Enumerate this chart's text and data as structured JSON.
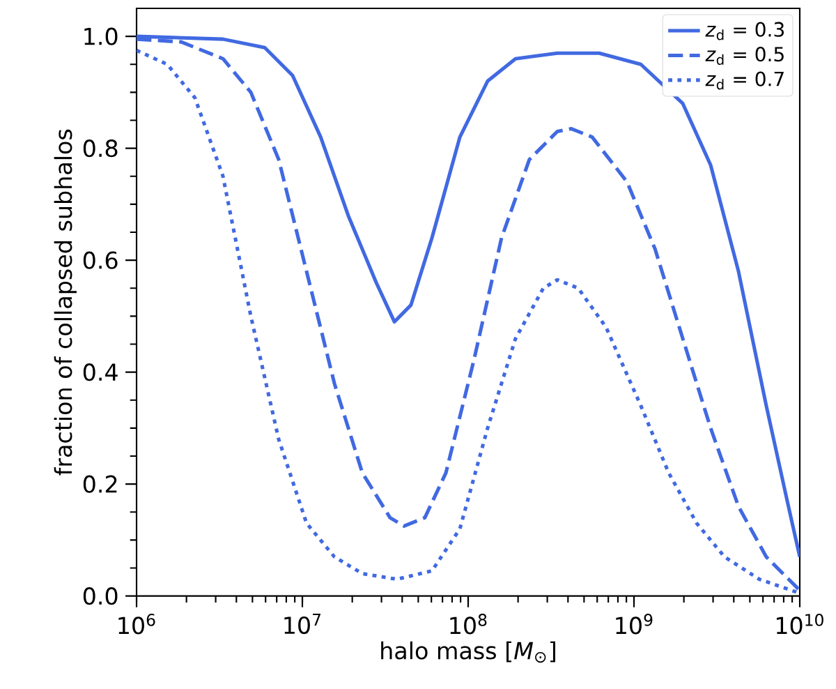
{
  "chart_data": {
    "type": "line",
    "xlabel": "halo mass [*M*$_{⊙}$]",
    "ylabel": "fraction of collapsed subhalos",
    "log": "x",
    "legend": "top right",
    "grid": false,
    "xlim": [
      1000000.0,
      10000000000.0
    ],
    "ylim": [
      0,
      1.05
    ],
    "xticks": [
      {
        "value": 1000000.0,
        "label": "10$^{6}$"
      },
      {
        "value": 10000000.0,
        "label": "10$^{7}$"
      },
      {
        "value": 100000000.0,
        "label": "10$^{8}$"
      },
      {
        "value": 1000000000.0,
        "label": "10$^{9}$"
      },
      {
        "value": 10000000000.0,
        "label": "10$^{10}$"
      }
    ],
    "yticks": [
      {
        "value": 0,
        "label": "0.0"
      },
      {
        "value": 0.2,
        "label": "0.2"
      },
      {
        "value": 0.4,
        "label": "0.4"
      },
      {
        "value": 0.6,
        "label": "0.6"
      },
      {
        "value": 0.8,
        "label": "0.8"
      },
      {
        "value": 1,
        "label": "1.0"
      }
    ],
    "series": [
      {
        "name": "*z*$_{d}$ = 0.3",
        "color": "#4169e1",
        "line_style": "solid",
        "x": [
          1000000.0,
          3320000.0,
          5930000.0,
          8730000.0,
          12900000.0,
          18900000.0,
          27900000.0,
          35900000.0,
          45200000.0,
          60500000.0,
          89100000.0,
          131000000.0,
          193000000.0,
          345000000.0,
          617000000.0,
          1100000000.0,
          1970000000.0,
          2900000000.0,
          4270000000.0,
          6280000000.0,
          8400000000.0,
          10000000000.0
        ],
        "values": [
          1.0,
          0.995,
          0.98,
          0.93,
          0.82,
          0.68,
          0.56,
          0.49,
          0.52,
          0.64,
          0.82,
          0.92,
          0.96,
          0.97,
          0.97,
          0.95,
          0.88,
          0.77,
          0.58,
          0.34,
          0.17,
          0.07
        ]
      },
      {
        "name": "*z*$_{d}$ = 0.5",
        "color": "#4169e1",
        "line_style": "dashed",
        "x": [
          1000000.0,
          1860000.0,
          3320000.0,
          4890000.0,
          7200000.0,
          10600000.0,
          15600000.0,
          23000000.0,
          33800000.0,
          41000000.0,
          54800000.0,
          73400000.0,
          108000000.0,
          159000000.0,
          234000000.0,
          345000000.0,
          419000000.0,
          560000000.0,
          908000000.0,
          1340000000.0,
          1970000000.0,
          2900000000.0,
          4270000000.0,
          6280000000.0,
          10000000000.0
        ],
        "values": [
          0.995,
          0.99,
          0.96,
          0.9,
          0.78,
          0.58,
          0.38,
          0.22,
          0.14,
          0.125,
          0.14,
          0.22,
          0.42,
          0.64,
          0.78,
          0.83,
          0.835,
          0.82,
          0.74,
          0.62,
          0.46,
          0.3,
          0.16,
          0.07,
          0.01
        ]
      },
      {
        "name": "*z*$_{d}$ = 0.7",
        "color": "#4169e1",
        "line_style": "dotted",
        "x": [
          1000000.0,
          1530000.0,
          2250000.0,
          3320000.0,
          4890000.0,
          7200000.0,
          10600000.0,
          15600000.0,
          23000000.0,
          37200000.0,
          60500000.0,
          89100000.0,
          131000000.0,
          193000000.0,
          284000000.0,
          345000000.0,
          461000000.0,
          679000000.0,
          1100000000.0,
          1620000000.0,
          2390000000.0,
          3520000000.0,
          5700000000.0,
          10000000000.0
        ],
        "values": [
          0.975,
          0.95,
          0.89,
          0.75,
          0.5,
          0.28,
          0.13,
          0.07,
          0.04,
          0.03,
          0.045,
          0.12,
          0.3,
          0.46,
          0.55,
          0.565,
          0.55,
          0.48,
          0.34,
          0.22,
          0.13,
          0.07,
          0.03,
          0.005
        ]
      }
    ]
  }
}
